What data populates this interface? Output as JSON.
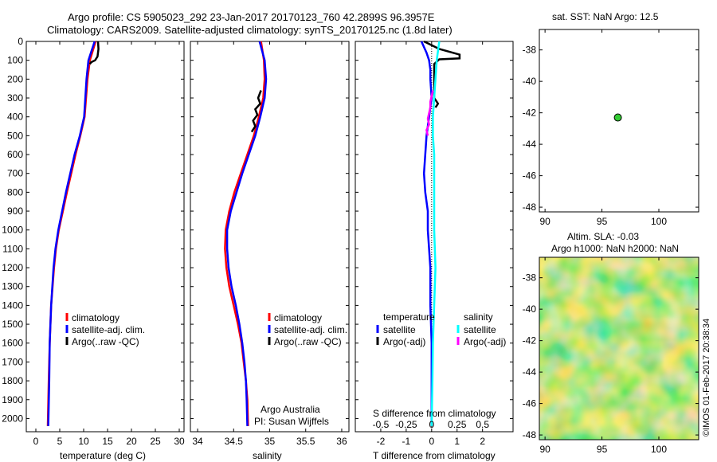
{
  "titles": {
    "line1": "Argo profile: CS 5905023_292 23-Jan-2017 20170123_760 42.2899S 96.3957E",
    "line2": "Climatology: CARS2009. Satellite-adjusted climatology: synTS_20170125.nc (1.8d later)"
  },
  "side_text": {
    "sst_title": "sat. SST: NaN Argo: 12.5",
    "sla_title1": "Altim. SLA: -0.03",
    "sla_title2": "Argo h1000: NaN h2000: NaN",
    "credit": "©IMOS 01-Feb-2017 20:38:34",
    "argo_australia": "Argo Australia",
    "pi": "PI: Susan Wijffels"
  },
  "colors": {
    "climatology": "#ff0000",
    "satellite": "#0000ff",
    "argo": "#000000",
    "sal_satellite": "#00ffff",
    "sal_argo": "#ff00ff",
    "marker": "#33cc33"
  },
  "chart_data": [
    {
      "type": "line",
      "id": "temp",
      "xlabel": "temperature (deg C)",
      "ylabel": "",
      "xlim": [
        -2,
        31
      ],
      "ylim": [
        2070,
        0
      ],
      "xticks": [
        0,
        5,
        10,
        15,
        20,
        25,
        30
      ],
      "yticks": [
        0,
        100,
        200,
        300,
        400,
        500,
        600,
        700,
        800,
        900,
        1000,
        1100,
        1200,
        1300,
        1400,
        1500,
        1600,
        1700,
        1800,
        1900,
        2000
      ],
      "legend": [
        "climatology",
        "satellite-adj. clim.",
        "Argo(..raw -QC)"
      ],
      "series": [
        {
          "name": "climatology",
          "color": "#ff0000",
          "depth": [
            0,
            100,
            200,
            400,
            500,
            600,
            800,
            1000,
            1100,
            1200,
            1400,
            1600,
            1800,
            2040
          ],
          "values": [
            12.5,
            11.3,
            10.8,
            10.2,
            9.3,
            8.3,
            6.5,
            4.8,
            4.2,
            3.8,
            3.2,
            2.9,
            2.7,
            2.5
          ]
        },
        {
          "name": "satellite-adj. clim.",
          "color": "#0000ff",
          "depth": [
            0,
            100,
            200,
            400,
            500,
            600,
            800,
            1000,
            1100,
            1200,
            1400,
            1600,
            1800,
            2040
          ],
          "values": [
            12.3,
            11.0,
            10.6,
            10.1,
            9.2,
            8.1,
            6.3,
            4.7,
            4.1,
            3.7,
            3.2,
            2.9,
            2.8,
            2.6
          ]
        },
        {
          "name": "Argo(..raw -QC)",
          "color": "#000000",
          "depth": [
            0,
            40,
            80,
            100,
            110,
            120
          ],
          "values": [
            13.0,
            13.1,
            12.9,
            12.4,
            11.6,
            11.3
          ]
        }
      ]
    },
    {
      "type": "line",
      "id": "sal",
      "xlabel": "salinity",
      "ylabel": "",
      "xlim": [
        33.9,
        36.1
      ],
      "ylim": [
        2070,
        0
      ],
      "xticks": [
        34,
        34.5,
        35,
        35.5,
        36
      ],
      "legend": [
        "climatology",
        "satellite-adj. clim.",
        "Argo(..raw -QC)"
      ],
      "series": [
        {
          "name": "climatology",
          "color": "#ff0000",
          "depth": [
            0,
            100,
            200,
            300,
            400,
            500,
            600,
            700,
            800,
            900,
            1000,
            1100,
            1200,
            1300,
            1400,
            1500,
            1600,
            1700,
            1800,
            1900,
            2040
          ],
          "values": [
            34.88,
            34.92,
            34.93,
            34.91,
            34.85,
            34.78,
            34.69,
            34.6,
            34.51,
            34.44,
            34.39,
            34.38,
            34.4,
            34.44,
            34.5,
            34.56,
            34.61,
            34.64,
            34.67,
            34.69,
            34.7
          ]
        },
        {
          "name": "satellite-adj. clim.",
          "color": "#0000ff",
          "depth": [
            0,
            100,
            200,
            300,
            400,
            500,
            600,
            700,
            800,
            900,
            1000,
            1100,
            1200,
            1300,
            1400,
            1500,
            1600,
            1700,
            1800,
            1900,
            2040
          ],
          "values": [
            34.86,
            34.93,
            34.95,
            34.93,
            34.87,
            34.8,
            34.71,
            34.62,
            34.54,
            34.46,
            34.41,
            34.41,
            34.43,
            34.47,
            34.53,
            34.58,
            34.62,
            34.65,
            34.67,
            34.68,
            34.69
          ]
        },
        {
          "name": "Argo(..raw -QC)",
          "color": "#000000",
          "depth": [
            260,
            300,
            330,
            360,
            390,
            420,
            450,
            480
          ],
          "values": [
            34.88,
            34.84,
            34.87,
            34.8,
            34.83,
            34.77,
            34.8,
            34.75
          ]
        }
      ]
    },
    {
      "type": "line",
      "id": "diff",
      "xlabel": "T difference from climatology",
      "xlabel2": "S difference from climatology",
      "xlim": [
        -3,
        3.2
      ],
      "ylim": [
        2070,
        0
      ],
      "xticks": [
        -2,
        -1,
        0,
        1,
        2
      ],
      "xtick_labels_top": [
        "-0.5",
        "-0.25",
        "0",
        "0.25",
        "0.5"
      ],
      "legend_headers": [
        "temperature",
        "salinity"
      ],
      "legend": [
        "satellite",
        "Argo(-adj)",
        "satellite",
        "Argo(-adj)"
      ],
      "series": [
        {
          "name": "satellite",
          "color": "#0000ff",
          "depth": [
            0,
            60,
            100,
            150,
            200,
            300,
            400,
            500,
            600,
            700,
            800,
            900,
            1000,
            1100,
            1200,
            1400,
            1600,
            1800,
            2040
          ],
          "values": [
            -0.4,
            -0.2,
            -0.1,
            -0.05,
            -0.05,
            0,
            -0.1,
            -0.2,
            -0.25,
            -0.3,
            -0.25,
            -0.15,
            -0.15,
            -0.1,
            -0.05,
            -0.05,
            0,
            0,
            0
          ]
        },
        {
          "name": "Argo(-adj)",
          "color": "#000000",
          "depth": [
            0,
            40,
            70,
            90,
            95,
            120,
            300,
            330,
            350
          ],
          "values": [
            -0.3,
            0.3,
            1.1,
            1.1,
            0.3,
            0.1,
            0.1,
            0.25,
            0.15
          ]
        },
        {
          "name": "satellite",
          "color": "#00ffff",
          "depth": [
            0,
            100,
            200,
            300,
            400,
            500,
            600,
            800,
            1000,
            1200,
            1400,
            1600,
            1800,
            2040
          ],
          "values": [
            0.3,
            0.2,
            0.15,
            0.1,
            0.05,
            0.05,
            0.1,
            0.1,
            0.1,
            0.15,
            0.1,
            0.05,
            0.03,
            0
          ]
        },
        {
          "name": "Argo(-adj)",
          "color": "#ff00ff",
          "depth": [
            260,
            290,
            320,
            350,
            380,
            410,
            440,
            470,
            500
          ],
          "values": [
            0.05,
            0.0,
            -0.05,
            -0.05,
            -0.1,
            -0.15,
            -0.1,
            -0.2,
            -0.15
          ]
        }
      ]
    },
    {
      "type": "scatter",
      "id": "sst",
      "title": "sat. SST: NaN Argo: 12.5",
      "xlim": [
        89.5,
        103.5
      ],
      "ylim": [
        -48.3,
        -36.7
      ],
      "xticks": [
        90,
        95,
        100
      ],
      "yticks": [
        -38,
        -40,
        -42,
        -44,
        -46,
        -48
      ],
      "points": [
        {
          "x": 96.4,
          "y": -42.3
        }
      ]
    },
    {
      "type": "heatmap",
      "id": "sla",
      "title": "Altim. SLA: -0.03",
      "xlim": [
        89.5,
        103.5
      ],
      "ylim": [
        -48.3,
        -36.7
      ],
      "xticks": [
        90,
        95,
        100
      ],
      "yticks": [
        -38,
        -40,
        -42,
        -44,
        -46,
        -48
      ]
    }
  ]
}
